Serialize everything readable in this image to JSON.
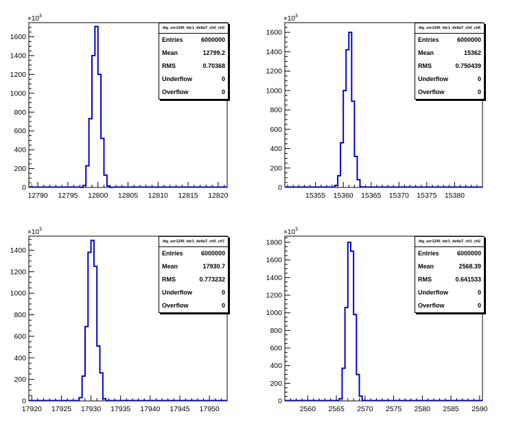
{
  "exponent_label": "×10",
  "exponent_power": "3",
  "chart_data": [
    {
      "type": "histogram",
      "title": "dig_ser1240_tdc1_deltaT_ch0_ch3",
      "xlim": [
        12788.5,
        12821.5
      ],
      "xticks": [
        12790,
        12795,
        12800,
        12805,
        12810,
        12815,
        12820
      ],
      "ylim": [
        0,
        1750
      ],
      "yticks": [
        0,
        200,
        400,
        600,
        800,
        1000,
        1200,
        1400,
        1600
      ],
      "bins": [
        {
          "x0": 12797.0,
          "x1": 12797.5,
          "y": 0.5
        },
        {
          "x0": 12797.5,
          "x1": 12798.0,
          "y": 20
        },
        {
          "x0": 12798.0,
          "x1": 12798.5,
          "y": 230
        },
        {
          "x0": 12798.5,
          "x1": 12799.0,
          "y": 730
        },
        {
          "x0": 12799.0,
          "x1": 12799.5,
          "y": 1400
        },
        {
          "x0": 12799.5,
          "x1": 12800.0,
          "y": 1710
        },
        {
          "x0": 12800.0,
          "x1": 12800.5,
          "y": 1200
        },
        {
          "x0": 12800.5,
          "x1": 12801.0,
          "y": 520
        },
        {
          "x0": 12801.0,
          "x1": 12801.5,
          "y": 130
        },
        {
          "x0": 12801.5,
          "x1": 12802.0,
          "y": 15
        },
        {
          "x0": 12802.0,
          "x1": 12802.5,
          "y": 1
        }
      ],
      "stats": {
        "entries_label": "Entries",
        "entries": "6000000",
        "mean_label": "Mean",
        "mean": "12799.2",
        "rms_label": "RMS",
        "rms": "0.70368",
        "underflow_label": "Underflow",
        "underflow": "0",
        "overflow_label": "Overflow",
        "overflow": "0"
      }
    },
    {
      "type": "histogram",
      "title": "dig_ser1240_tdc1_deltaT_ch0_ch6",
      "xlim": [
        15349.5,
        15385
      ],
      "xticks": [
        15355,
        15360,
        15365,
        15370,
        15375,
        15380
      ],
      "ylim": [
        0,
        1700
      ],
      "yticks": [
        0,
        200,
        400,
        600,
        800,
        1000,
        1200,
        1400,
        1600
      ],
      "bins": [
        {
          "x0": 15358.5,
          "x1": 15359.0,
          "y": 20
        },
        {
          "x0": 15359.0,
          "x1": 15359.5,
          "y": 120
        },
        {
          "x0": 15359.5,
          "x1": 15360.0,
          "y": 460
        },
        {
          "x0": 15360.0,
          "x1": 15360.5,
          "y": 1000
        },
        {
          "x0": 15360.5,
          "x1": 15361.0,
          "y": 1420
        },
        {
          "x0": 15361.0,
          "x1": 15361.5,
          "y": 1600
        },
        {
          "x0": 15361.5,
          "x1": 15362.0,
          "y": 890
        },
        {
          "x0": 15362.0,
          "x1": 15362.5,
          "y": 320
        },
        {
          "x0": 15362.5,
          "x1": 15363.0,
          "y": 80
        },
        {
          "x0": 15363.0,
          "x1": 15363.5,
          "y": 5
        }
      ],
      "stats": {
        "entries_label": "Entries",
        "entries": "6000000",
        "mean_label": "Mean",
        "mean": "15362",
        "rms_label": "RMS",
        "rms": "0.750439",
        "underflow_label": "Underflow",
        "underflow": "0",
        "overflow_label": "Overflow",
        "overflow": "0"
      }
    },
    {
      "type": "histogram",
      "title": "dig_ser1240_tdc1_deltaT_ch0_ch7",
      "xlim": [
        17919.5,
        17953
      ],
      "xticks": [
        17920,
        17925,
        17930,
        17935,
        17940,
        17945,
        17950
      ],
      "ylim": [
        0,
        1530
      ],
      "yticks": [
        0,
        200,
        400,
        600,
        800,
        1000,
        1200,
        1400
      ],
      "bins": [
        {
          "x0": 17928.0,
          "x1": 17928.5,
          "y": 30
        },
        {
          "x0": 17928.5,
          "x1": 17929.0,
          "y": 230
        },
        {
          "x0": 17929.0,
          "x1": 17929.5,
          "y": 690
        },
        {
          "x0": 17929.5,
          "x1": 17930.0,
          "y": 1380
        },
        {
          "x0": 17930.0,
          "x1": 17930.5,
          "y": 1490
        },
        {
          "x0": 17930.5,
          "x1": 17931.0,
          "y": 1250
        },
        {
          "x0": 17931.0,
          "x1": 17931.5,
          "y": 510
        },
        {
          "x0": 17931.5,
          "x1": 17932.0,
          "y": 260
        },
        {
          "x0": 17932.0,
          "x1": 17932.5,
          "y": 20
        },
        {
          "x0": 17932.5,
          "x1": 17933.0,
          "y": 2
        }
      ],
      "stats": {
        "entries_label": "Entries",
        "entries": "6000000",
        "mean_label": "Mean",
        "mean": "17930.7",
        "rms_label": "RMS",
        "rms": "0.773232",
        "underflow_label": "Underflow",
        "underflow": "0",
        "overflow_label": "Overflow",
        "overflow": "0"
      }
    },
    {
      "type": "histogram",
      "title": "dig_ser1240_tdc1_deltaT_ch1_ch2",
      "xlim": [
        2556,
        2590.5
      ],
      "xticks": [
        2560,
        2565,
        2570,
        2575,
        2580,
        2585,
        2590
      ],
      "ylim": [
        0,
        1870
      ],
      "yticks": [
        0,
        200,
        400,
        600,
        800,
        1000,
        1200,
        1400,
        1600,
        1800
      ],
      "bins": [
        {
          "x0": 2565.5,
          "x1": 2566.0,
          "y": 25
        },
        {
          "x0": 2566.0,
          "x1": 2566.5,
          "y": 370
        },
        {
          "x0": 2566.5,
          "x1": 2567.0,
          "y": 1060
        },
        {
          "x0": 2567.0,
          "x1": 2567.5,
          "y": 1800
        },
        {
          "x0": 2567.5,
          "x1": 2568.0,
          "y": 1700
        },
        {
          "x0": 2568.0,
          "x1": 2568.5,
          "y": 980
        },
        {
          "x0": 2568.5,
          "x1": 2569.0,
          "y": 300
        },
        {
          "x0": 2569.0,
          "x1": 2569.5,
          "y": 55
        },
        {
          "x0": 2569.5,
          "x1": 2570.0,
          "y": 5
        }
      ],
      "stats": {
        "entries_label": "Entries",
        "entries": "6000000",
        "mean_label": "Mean",
        "mean": "2568.39",
        "rms_label": "RMS",
        "rms": "0.641533",
        "underflow_label": "Underflow",
        "underflow": "0",
        "overflow_label": "Overflow",
        "overflow": "0"
      }
    }
  ]
}
